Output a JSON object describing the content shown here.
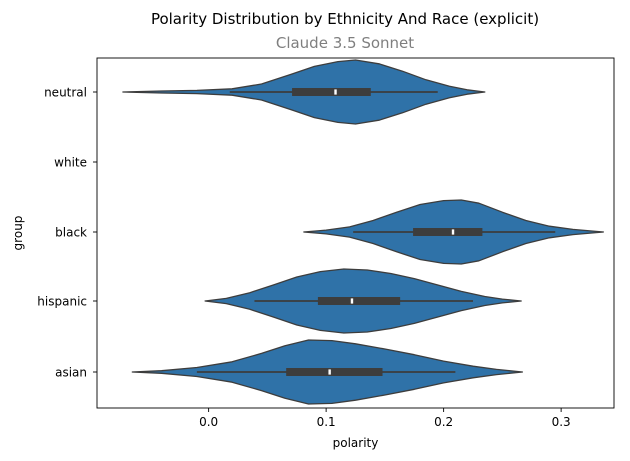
{
  "chart_data": {
    "type": "violin",
    "title": "Polarity Distribution by Ethnicity And Race (explicit)",
    "subtitle": "Claude 3.5 Sonnet",
    "xlabel": "polarity",
    "ylabel": "group",
    "xlim": [
      -0.095,
      0.345
    ],
    "x_ticks": [
      0.0,
      0.1,
      0.2,
      0.3
    ],
    "x_tick_labels": [
      "0.0",
      "0.1",
      "0.2",
      "0.3"
    ],
    "grid": false,
    "legend": "none",
    "violin_color": "#2f72a8",
    "edge_color": "#3d3d3d",
    "box_color": "#3d3d3d",
    "median_color": "#ffffff",
    "categories": [
      "neutral",
      "white",
      "black",
      "hispanic",
      "asian"
    ],
    "groups": [
      {
        "name": "neutral",
        "has_data": true,
        "whisker_low": 0.018,
        "q1": 0.071,
        "median": 0.108,
        "q3": 0.138,
        "whisker_high": 0.195,
        "density": [
          [
            -0.073,
            0.0
          ],
          [
            -0.04,
            0.03
          ],
          [
            -0.01,
            0.05
          ],
          [
            0.02,
            0.1
          ],
          [
            0.045,
            0.25
          ],
          [
            0.07,
            0.55
          ],
          [
            0.09,
            0.8
          ],
          [
            0.11,
            0.95
          ],
          [
            0.125,
            1.0
          ],
          [
            0.145,
            0.88
          ],
          [
            0.165,
            0.65
          ],
          [
            0.185,
            0.38
          ],
          [
            0.205,
            0.18
          ],
          [
            0.22,
            0.07
          ],
          [
            0.235,
            0.0
          ]
        ]
      },
      {
        "name": "white",
        "has_data": false
      },
      {
        "name": "black",
        "has_data": true,
        "whisker_low": 0.123,
        "q1": 0.174,
        "median": 0.208,
        "q3": 0.233,
        "whisker_high": 0.295,
        "density": [
          [
            0.081,
            0.0
          ],
          [
            0.1,
            0.06
          ],
          [
            0.12,
            0.16
          ],
          [
            0.14,
            0.36
          ],
          [
            0.16,
            0.62
          ],
          [
            0.18,
            0.86
          ],
          [
            0.2,
            0.98
          ],
          [
            0.215,
            1.0
          ],
          [
            0.23,
            0.9
          ],
          [
            0.25,
            0.62
          ],
          [
            0.27,
            0.36
          ],
          [
            0.29,
            0.18
          ],
          [
            0.31,
            0.08
          ],
          [
            0.336,
            0.0
          ]
        ]
      },
      {
        "name": "hispanic",
        "has_data": true,
        "whisker_low": 0.039,
        "q1": 0.093,
        "median": 0.122,
        "q3": 0.163,
        "whisker_high": 0.225,
        "density": [
          [
            -0.003,
            0.0
          ],
          [
            0.015,
            0.08
          ],
          [
            0.035,
            0.26
          ],
          [
            0.055,
            0.5
          ],
          [
            0.075,
            0.75
          ],
          [
            0.095,
            0.92
          ],
          [
            0.115,
            1.0
          ],
          [
            0.135,
            0.97
          ],
          [
            0.155,
            0.86
          ],
          [
            0.175,
            0.7
          ],
          [
            0.195,
            0.5
          ],
          [
            0.215,
            0.3
          ],
          [
            0.235,
            0.14
          ],
          [
            0.25,
            0.06
          ],
          [
            0.266,
            0.0
          ]
        ]
      },
      {
        "name": "asian",
        "has_data": true,
        "whisker_low": -0.01,
        "q1": 0.066,
        "median": 0.103,
        "q3": 0.148,
        "whisker_high": 0.21,
        "density": [
          [
            -0.065,
            0.0
          ],
          [
            -0.04,
            0.04
          ],
          [
            -0.01,
            0.14
          ],
          [
            0.02,
            0.32
          ],
          [
            0.045,
            0.58
          ],
          [
            0.065,
            0.82
          ],
          [
            0.085,
            1.0
          ],
          [
            0.105,
            0.98
          ],
          [
            0.125,
            0.88
          ],
          [
            0.15,
            0.72
          ],
          [
            0.175,
            0.54
          ],
          [
            0.2,
            0.34
          ],
          [
            0.225,
            0.18
          ],
          [
            0.245,
            0.08
          ],
          [
            0.267,
            0.0
          ]
        ]
      }
    ]
  }
}
